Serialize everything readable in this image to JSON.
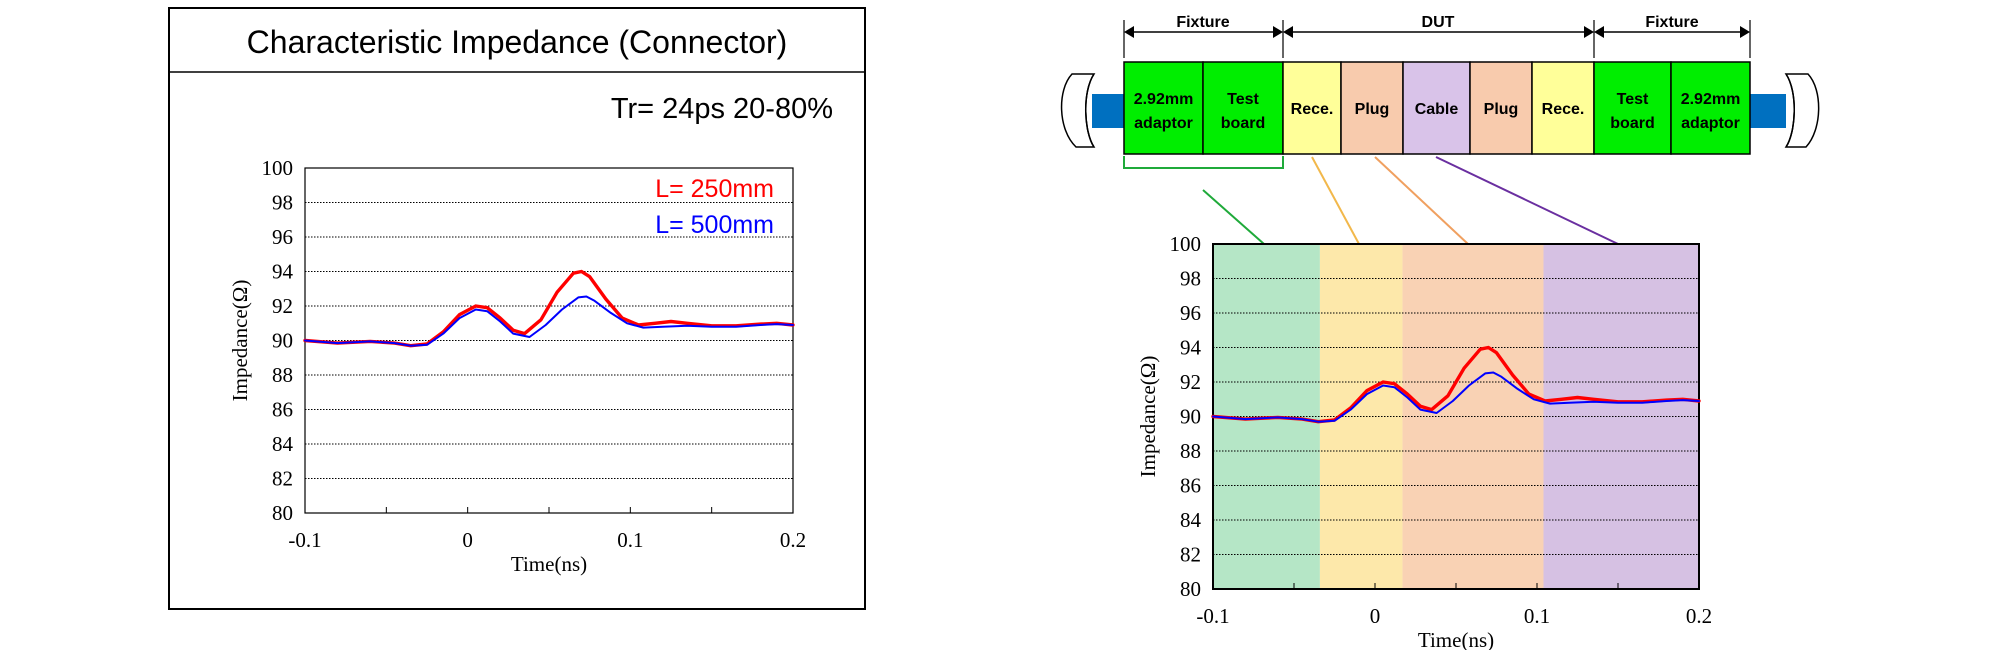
{
  "left_panel": {
    "title": "Characteristic Impedance (Connector)",
    "condition": "Tr= 24ps 20-80%"
  },
  "right_panel": {
    "diagram": {
      "dimensions": [
        {
          "label": "Fixture"
        },
        {
          "label": "DUT"
        },
        {
          "label": "Fixture"
        }
      ],
      "blocks": [
        {
          "line1": "2.92mm",
          "line2": "adaptor",
          "color": "#00ee00"
        },
        {
          "line1": "Test",
          "line2": "board",
          "color": "#00ee00"
        },
        {
          "line1": "Rece.",
          "line2": "",
          "color": "#ffff99"
        },
        {
          "line1": "Plug",
          "line2": "",
          "color": "#f8cbad"
        },
        {
          "line1": "Cable",
          "line2": "",
          "color": "#d9c3e9"
        },
        {
          "line1": "Plug",
          "line2": "",
          "color": "#f8cbad"
        },
        {
          "line1": "Rece.",
          "line2": "",
          "color": "#ffff99"
        },
        {
          "line1": "Test",
          "line2": "board",
          "color": "#00ee00"
        },
        {
          "line1": "2.92mm",
          "line2": "adaptor",
          "color": "#00ee00"
        }
      ],
      "cable_color": "#0070c0",
      "leader_colors": [
        "#1faa3a",
        "#f2b84b",
        "#f0a060",
        "#6a2fa0"
      ]
    },
    "region_colors": [
      "#b5e6c6",
      "#fde8aa",
      "#f9d2b4",
      "#d6c1e3"
    ],
    "region_bounds_ns": [
      -0.1,
      -0.034,
      0.017,
      0.104,
      0.2
    ]
  },
  "chart_data": [
    {
      "type": "line",
      "title": "",
      "xlabel": "Time(ns)",
      "ylabel": "Impedance(Ω)",
      "xlim": [
        -0.1,
        0.2
      ],
      "ylim": [
        80,
        100
      ],
      "x_ticks": [
        "-0.1",
        "0",
        "0.1",
        "0.2"
      ],
      "y_ticks": [
        "80",
        "82",
        "84",
        "86",
        "88",
        "90",
        "92",
        "94",
        "96",
        "98",
        "100"
      ],
      "grid": true,
      "legend": "top-right",
      "series": [
        {
          "name": "L= 250mm",
          "color": "#ff0000",
          "x": [
            -0.1,
            -0.08,
            -0.06,
            -0.045,
            -0.035,
            -0.025,
            -0.015,
            -0.005,
            0.005,
            0.012,
            0.02,
            0.028,
            0.035,
            0.045,
            0.055,
            0.065,
            0.07,
            0.075,
            0.085,
            0.095,
            0.105,
            0.115,
            0.125,
            0.135,
            0.15,
            0.165,
            0.18,
            0.19,
            0.2
          ],
          "y": [
            90.0,
            89.85,
            89.95,
            89.85,
            89.7,
            89.8,
            90.5,
            91.5,
            92.0,
            91.9,
            91.3,
            90.6,
            90.4,
            91.2,
            92.8,
            93.9,
            94.0,
            93.7,
            92.4,
            91.3,
            90.9,
            91.0,
            91.1,
            91.0,
            90.85,
            90.85,
            90.95,
            91.0,
            90.9
          ]
        },
        {
          "name": "L= 500mm",
          "color": "#0000ff",
          "x": [
            -0.1,
            -0.08,
            -0.06,
            -0.045,
            -0.035,
            -0.025,
            -0.015,
            -0.005,
            0.005,
            0.012,
            0.02,
            0.028,
            0.038,
            0.048,
            0.058,
            0.068,
            0.073,
            0.078,
            0.088,
            0.098,
            0.108,
            0.12,
            0.135,
            0.15,
            0.165,
            0.18,
            0.19,
            0.2
          ],
          "y": [
            90.0,
            89.85,
            89.95,
            89.85,
            89.7,
            89.75,
            90.4,
            91.3,
            91.8,
            91.7,
            91.1,
            90.4,
            90.2,
            90.9,
            91.8,
            92.5,
            92.55,
            92.3,
            91.6,
            91.0,
            90.75,
            90.8,
            90.85,
            90.8,
            90.8,
            90.9,
            90.95,
            90.9
          ]
        }
      ]
    },
    {
      "type": "line",
      "title": "",
      "xlabel": "Time(ns)",
      "ylabel": "Impedance(Ω)",
      "xlim": [
        -0.1,
        0.2
      ],
      "ylim": [
        80,
        100
      ],
      "x_ticks": [
        "-0.1",
        "0",
        "0.1",
        "0.2"
      ],
      "y_ticks": [
        "80",
        "82",
        "84",
        "86",
        "88",
        "90",
        "92",
        "94",
        "96",
        "98",
        "100"
      ],
      "grid": true,
      "legend": "none",
      "series": [
        {
          "color": "#ff0000",
          "x": [
            -0.1,
            -0.08,
            -0.06,
            -0.045,
            -0.035,
            -0.025,
            -0.015,
            -0.005,
            0.005,
            0.012,
            0.02,
            0.028,
            0.035,
            0.045,
            0.055,
            0.065,
            0.07,
            0.075,
            0.085,
            0.095,
            0.105,
            0.115,
            0.125,
            0.135,
            0.15,
            0.165,
            0.18,
            0.19,
            0.2
          ],
          "y": [
            90.0,
            89.85,
            89.95,
            89.85,
            89.7,
            89.8,
            90.5,
            91.5,
            92.0,
            91.9,
            91.3,
            90.6,
            90.4,
            91.2,
            92.8,
            93.9,
            94.0,
            93.7,
            92.4,
            91.3,
            90.9,
            91.0,
            91.1,
            91.0,
            90.85,
            90.85,
            90.95,
            91.0,
            90.9
          ]
        },
        {
          "color": "#0000ff",
          "x": [
            -0.1,
            -0.08,
            -0.06,
            -0.045,
            -0.035,
            -0.025,
            -0.015,
            -0.005,
            0.005,
            0.012,
            0.02,
            0.028,
            0.038,
            0.048,
            0.058,
            0.068,
            0.073,
            0.078,
            0.088,
            0.098,
            0.108,
            0.12,
            0.135,
            0.15,
            0.165,
            0.18,
            0.19,
            0.2
          ],
          "y": [
            90.0,
            89.85,
            89.95,
            89.85,
            89.7,
            89.75,
            90.4,
            91.3,
            91.8,
            91.7,
            91.1,
            90.4,
            90.2,
            90.9,
            91.8,
            92.5,
            92.55,
            92.3,
            91.6,
            91.0,
            90.75,
            90.8,
            90.85,
            90.8,
            90.8,
            90.9,
            90.95,
            90.9
          ]
        }
      ]
    }
  ]
}
